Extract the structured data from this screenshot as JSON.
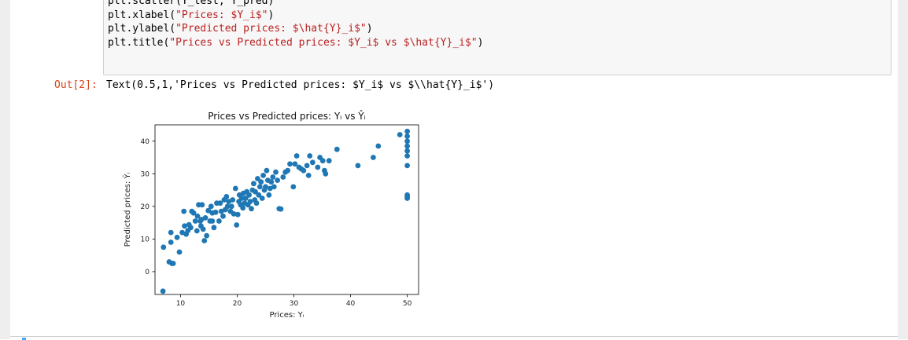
{
  "code_cell": {
    "lines": [
      [
        {
          "t": "plt.scatter(Y_test, Y_pred)",
          "c": ""
        }
      ],
      [
        {
          "t": "plt.xlabel(",
          "c": ""
        },
        {
          "t": "\"Prices: $Y_i$\"",
          "c": "str"
        },
        {
          "t": ")",
          "c": ""
        }
      ],
      [
        {
          "t": "plt.ylabel(",
          "c": ""
        },
        {
          "t": "\"Predicted prices: $\\hat{Y}_i$\"",
          "c": "str"
        },
        {
          "t": ")",
          "c": ""
        }
      ],
      [
        {
          "t": "plt.title(",
          "c": ""
        },
        {
          "t": "\"Prices vs Predicted prices: $Y_i$ vs $\\hat{Y}_i$\"",
          "c": "str"
        },
        {
          "t": ")",
          "c": ""
        }
      ]
    ]
  },
  "output": {
    "prompt": "Out[2]:",
    "text": "Text(0.5,1,'Prices vs Predicted prices: $Y_i$ vs $\\\\hat{Y}_i$')"
  },
  "colors": {
    "marker": "#1f77b4",
    "string": "#ba2121",
    "out_prompt": "#d84315",
    "accent": "#42a5f5"
  },
  "chart_data": {
    "type": "scatter",
    "title": "Prices vs Predicted prices: Yᵢ vs Ŷᵢ",
    "xlabel": "Prices: Yᵢ",
    "ylabel": "Predicted prices: Ŷᵢ",
    "xlim": [
      5.5,
      52
    ],
    "ylim": [
      -7,
      45
    ],
    "xticks": [
      10,
      20,
      30,
      40,
      50
    ],
    "yticks": [
      0,
      10,
      20,
      30,
      40
    ],
    "grid": false,
    "series": [
      {
        "points": [
          [
            7,
            7.5
          ],
          [
            6.9,
            -6
          ],
          [
            8,
            3
          ],
          [
            8.5,
            2.5
          ],
          [
            8.7,
            2.5
          ],
          [
            8.3,
            9
          ],
          [
            8.3,
            12
          ],
          [
            9.4,
            10.5
          ],
          [
            9.8,
            6
          ],
          [
            10.3,
            12
          ],
          [
            10.7,
            14
          ],
          [
            10.6,
            18.5
          ],
          [
            11,
            11.5
          ],
          [
            11.3,
            12.6
          ],
          [
            11.5,
            14.4
          ],
          [
            11.8,
            13.5
          ],
          [
            12,
            18.5
          ],
          [
            12.3,
            18
          ],
          [
            12.6,
            15.5
          ],
          [
            12.9,
            12.5
          ],
          [
            13,
            17
          ],
          [
            13.2,
            20.5
          ],
          [
            13.5,
            15.5
          ],
          [
            13.6,
            14
          ],
          [
            13.7,
            16
          ],
          [
            13.8,
            20.5
          ],
          [
            14,
            13
          ],
          [
            14.2,
            9.5
          ],
          [
            14.4,
            16.5
          ],
          [
            14.6,
            11
          ],
          [
            14.9,
            18.7
          ],
          [
            15.2,
            15.5
          ],
          [
            15.4,
            20
          ],
          [
            15.6,
            15.5
          ],
          [
            15.6,
            18
          ],
          [
            15.9,
            13.5
          ],
          [
            16.2,
            18.2
          ],
          [
            16.4,
            21
          ],
          [
            16.8,
            15.5
          ],
          [
            17,
            21
          ],
          [
            17.2,
            18.5
          ],
          [
            17.5,
            17
          ],
          [
            17.7,
            22
          ],
          [
            17.9,
            19
          ],
          [
            18.1,
            23
          ],
          [
            18.3,
            20
          ],
          [
            18.5,
            21.5
          ],
          [
            18.8,
            18.5
          ],
          [
            19,
            20
          ],
          [
            19.2,
            22
          ],
          [
            19.4,
            17.7
          ],
          [
            19.7,
            25.5
          ],
          [
            19.9,
            14.3
          ],
          [
            20.1,
            17.5
          ],
          [
            20.3,
            21.5
          ],
          [
            20.4,
            23.5
          ],
          [
            20.6,
            20.5
          ],
          [
            20.8,
            22.5
          ],
          [
            21,
            19.5
          ],
          [
            21.1,
            24
          ],
          [
            21.3,
            21
          ],
          [
            21.5,
            22.5
          ],
          [
            21.7,
            24.5
          ],
          [
            21.9,
            20.5
          ],
          [
            22.1,
            23.5
          ],
          [
            22.3,
            21.5
          ],
          [
            22.5,
            19.3
          ],
          [
            22.7,
            25
          ],
          [
            22.9,
            27
          ],
          [
            23.1,
            22
          ],
          [
            23.2,
            24.5
          ],
          [
            23.4,
            21
          ],
          [
            23.6,
            28.5
          ],
          [
            23.8,
            23.5
          ],
          [
            24,
            26
          ],
          [
            24.2,
            27.5
          ],
          [
            24.4,
            22.5
          ],
          [
            24.6,
            29.5
          ],
          [
            24.8,
            25
          ],
          [
            25,
            26
          ],
          [
            25.2,
            31
          ],
          [
            25.4,
            28
          ],
          [
            25.6,
            23.5
          ],
          [
            25.8,
            25.5
          ],
          [
            26,
            27.5
          ],
          [
            26.3,
            29
          ],
          [
            26.5,
            26
          ],
          [
            26.8,
            30.5
          ],
          [
            27.1,
            28
          ],
          [
            27.4,
            19.3
          ],
          [
            27.7,
            19.2
          ],
          [
            28.1,
            29
          ],
          [
            28.5,
            30.5
          ],
          [
            28.9,
            31
          ],
          [
            29.3,
            33
          ],
          [
            29.9,
            26
          ],
          [
            30.2,
            33
          ],
          [
            30.5,
            35.5
          ],
          [
            30.9,
            32
          ],
          [
            31.3,
            31.5
          ],
          [
            31.7,
            31
          ],
          [
            32.3,
            32.5
          ],
          [
            32.6,
            29.5
          ],
          [
            32.8,
            35.5
          ],
          [
            33.3,
            33.5
          ],
          [
            34.2,
            32
          ],
          [
            34.6,
            35
          ],
          [
            35.1,
            34
          ],
          [
            35.4,
            31
          ],
          [
            35.6,
            30
          ],
          [
            36.2,
            34
          ],
          [
            37.6,
            37.5
          ],
          [
            41.3,
            32.5
          ],
          [
            44,
            35
          ],
          [
            44.9,
            38.5
          ],
          [
            48.7,
            42
          ],
          [
            50,
            43
          ],
          [
            50,
            41.5
          ],
          [
            50,
            40
          ],
          [
            50,
            38.5
          ],
          [
            50,
            37
          ],
          [
            50,
            35.5
          ],
          [
            50,
            32.5
          ],
          [
            50,
            23.5
          ],
          [
            50,
            22.9
          ],
          [
            50,
            22.5
          ]
        ]
      }
    ]
  }
}
